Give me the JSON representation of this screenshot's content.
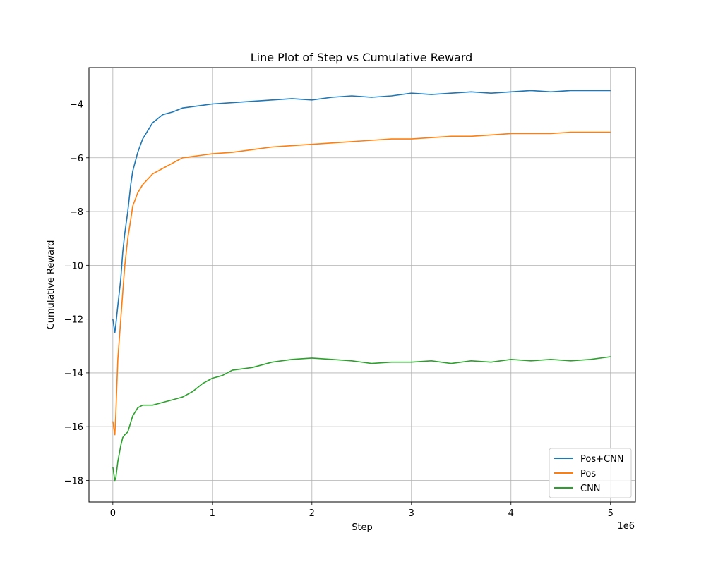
{
  "chart_data": {
    "type": "line",
    "title": "Line Plot of Step vs Cumulative Reward",
    "xlabel": "Step",
    "ylabel": "Cumulative Reward",
    "x_offset_label": "1e6",
    "xlim": [
      -0.24,
      5.25
    ],
    "ylim": [
      -18.8,
      -2.65
    ],
    "x_ticks": [
      0,
      1,
      2,
      3,
      4,
      5
    ],
    "x_tick_labels": [
      "0",
      "1",
      "2",
      "3",
      "4",
      "5"
    ],
    "y_ticks": [
      -18,
      -16,
      -14,
      -12,
      -10,
      -8,
      -6,
      -4
    ],
    "y_tick_labels": [
      "−18",
      "−16",
      "−14",
      "−12",
      "−10",
      "−8",
      "−6",
      "−4"
    ],
    "grid": true,
    "legend_position": "lower-right",
    "series": [
      {
        "name": "Pos+CNN",
        "color": "#1f77b4",
        "x": [
          0,
          0.02,
          0.03,
          0.05,
          0.08,
          0.1,
          0.12,
          0.15,
          0.18,
          0.2,
          0.25,
          0.3,
          0.35,
          0.4,
          0.5,
          0.6,
          0.7,
          0.8,
          0.9,
          1.0,
          1.2,
          1.4,
          1.6,
          1.8,
          2.0,
          2.2,
          2.4,
          2.6,
          2.8,
          3.0,
          3.2,
          3.4,
          3.6,
          3.8,
          4.0,
          4.2,
          4.4,
          4.6,
          4.8,
          5.0
        ],
        "y": [
          -12.0,
          -12.5,
          -12.2,
          -11.5,
          -10.5,
          -9.5,
          -8.8,
          -8.0,
          -7.0,
          -6.5,
          -5.8,
          -5.3,
          -5.0,
          -4.7,
          -4.4,
          -4.3,
          -4.15,
          -4.1,
          -4.05,
          -4.0,
          -3.95,
          -3.9,
          -3.85,
          -3.8,
          -3.85,
          -3.75,
          -3.7,
          -3.75,
          -3.7,
          -3.6,
          -3.65,
          -3.6,
          -3.55,
          -3.6,
          -3.55,
          -3.5,
          -3.55,
          -3.5,
          -3.5,
          -3.5
        ]
      },
      {
        "name": "Pos",
        "color": "#ff7f0e",
        "x": [
          0,
          0.02,
          0.03,
          0.05,
          0.08,
          0.1,
          0.12,
          0.15,
          0.18,
          0.2,
          0.25,
          0.3,
          0.35,
          0.4,
          0.5,
          0.6,
          0.7,
          0.8,
          0.9,
          1.0,
          1.2,
          1.4,
          1.6,
          1.8,
          2.0,
          2.2,
          2.4,
          2.6,
          2.8,
          3.0,
          3.2,
          3.4,
          3.6,
          3.8,
          4.0,
          4.2,
          4.4,
          4.6,
          4.8,
          5.0
        ],
        "y": [
          -15.8,
          -16.3,
          -15.5,
          -13.5,
          -12.0,
          -11.0,
          -10.0,
          -9.0,
          -8.3,
          -7.8,
          -7.3,
          -7.0,
          -6.8,
          -6.6,
          -6.4,
          -6.2,
          -6.0,
          -5.95,
          -5.9,
          -5.85,
          -5.8,
          -5.7,
          -5.6,
          -5.55,
          -5.5,
          -5.45,
          -5.4,
          -5.35,
          -5.3,
          -5.3,
          -5.25,
          -5.2,
          -5.2,
          -5.15,
          -5.1,
          -5.1,
          -5.1,
          -5.05,
          -5.05,
          -5.05
        ]
      },
      {
        "name": "CNN",
        "color": "#2ca02c",
        "x": [
          0,
          0.02,
          0.03,
          0.05,
          0.08,
          0.1,
          0.12,
          0.15,
          0.2,
          0.25,
          0.3,
          0.4,
          0.5,
          0.6,
          0.7,
          0.8,
          0.9,
          1.0,
          1.1,
          1.2,
          1.4,
          1.6,
          1.8,
          2.0,
          2.2,
          2.4,
          2.6,
          2.8,
          3.0,
          3.2,
          3.4,
          3.6,
          3.8,
          4.0,
          4.2,
          4.4,
          4.6,
          4.8,
          5.0
        ],
        "y": [
          -17.5,
          -18.0,
          -17.9,
          -17.3,
          -16.7,
          -16.4,
          -16.3,
          -16.2,
          -15.6,
          -15.3,
          -15.2,
          -15.2,
          -15.1,
          -15.0,
          -14.9,
          -14.7,
          -14.4,
          -14.2,
          -14.1,
          -13.9,
          -13.8,
          -13.6,
          -13.5,
          -13.45,
          -13.5,
          -13.55,
          -13.65,
          -13.6,
          -13.6,
          -13.55,
          -13.65,
          -13.55,
          -13.6,
          -13.5,
          -13.55,
          -13.5,
          -13.55,
          -13.5,
          -13.4
        ]
      }
    ]
  }
}
